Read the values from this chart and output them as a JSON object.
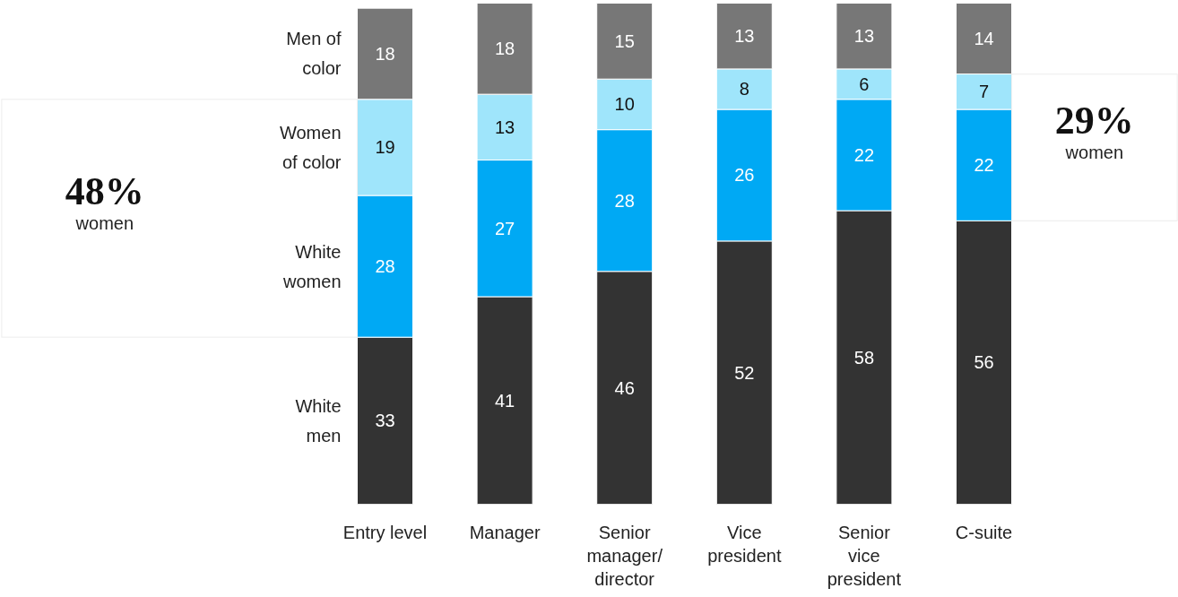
{
  "chart_data": {
    "type": "bar",
    "stacked": true,
    "data_labels": true,
    "grid": false,
    "categories": [
      "Entry level",
      "Manager",
      "Senior\nmanager/\ndirector",
      "Vice\npresident",
      "Senior\nvice\npresident",
      "C-suite"
    ],
    "series": [
      {
        "name": "White\nmen",
        "color": "#333333",
        "values": [
          33,
          41,
          46,
          52,
          58,
          56
        ]
      },
      {
        "name": "White\nwomen",
        "color": "#00a9f4",
        "values": [
          28,
          27,
          28,
          26,
          22,
          22
        ]
      },
      {
        "name": "Women\nof color",
        "color": "#9fe5fb",
        "values": [
          19,
          13,
          10,
          8,
          6,
          7
        ]
      },
      {
        "name": "Men of\ncolor",
        "color": "#777777",
        "values": [
          18,
          18,
          15,
          13,
          13,
          14
        ]
      }
    ],
    "annotations": [
      "48% women",
      "29% women"
    ]
  }
}
